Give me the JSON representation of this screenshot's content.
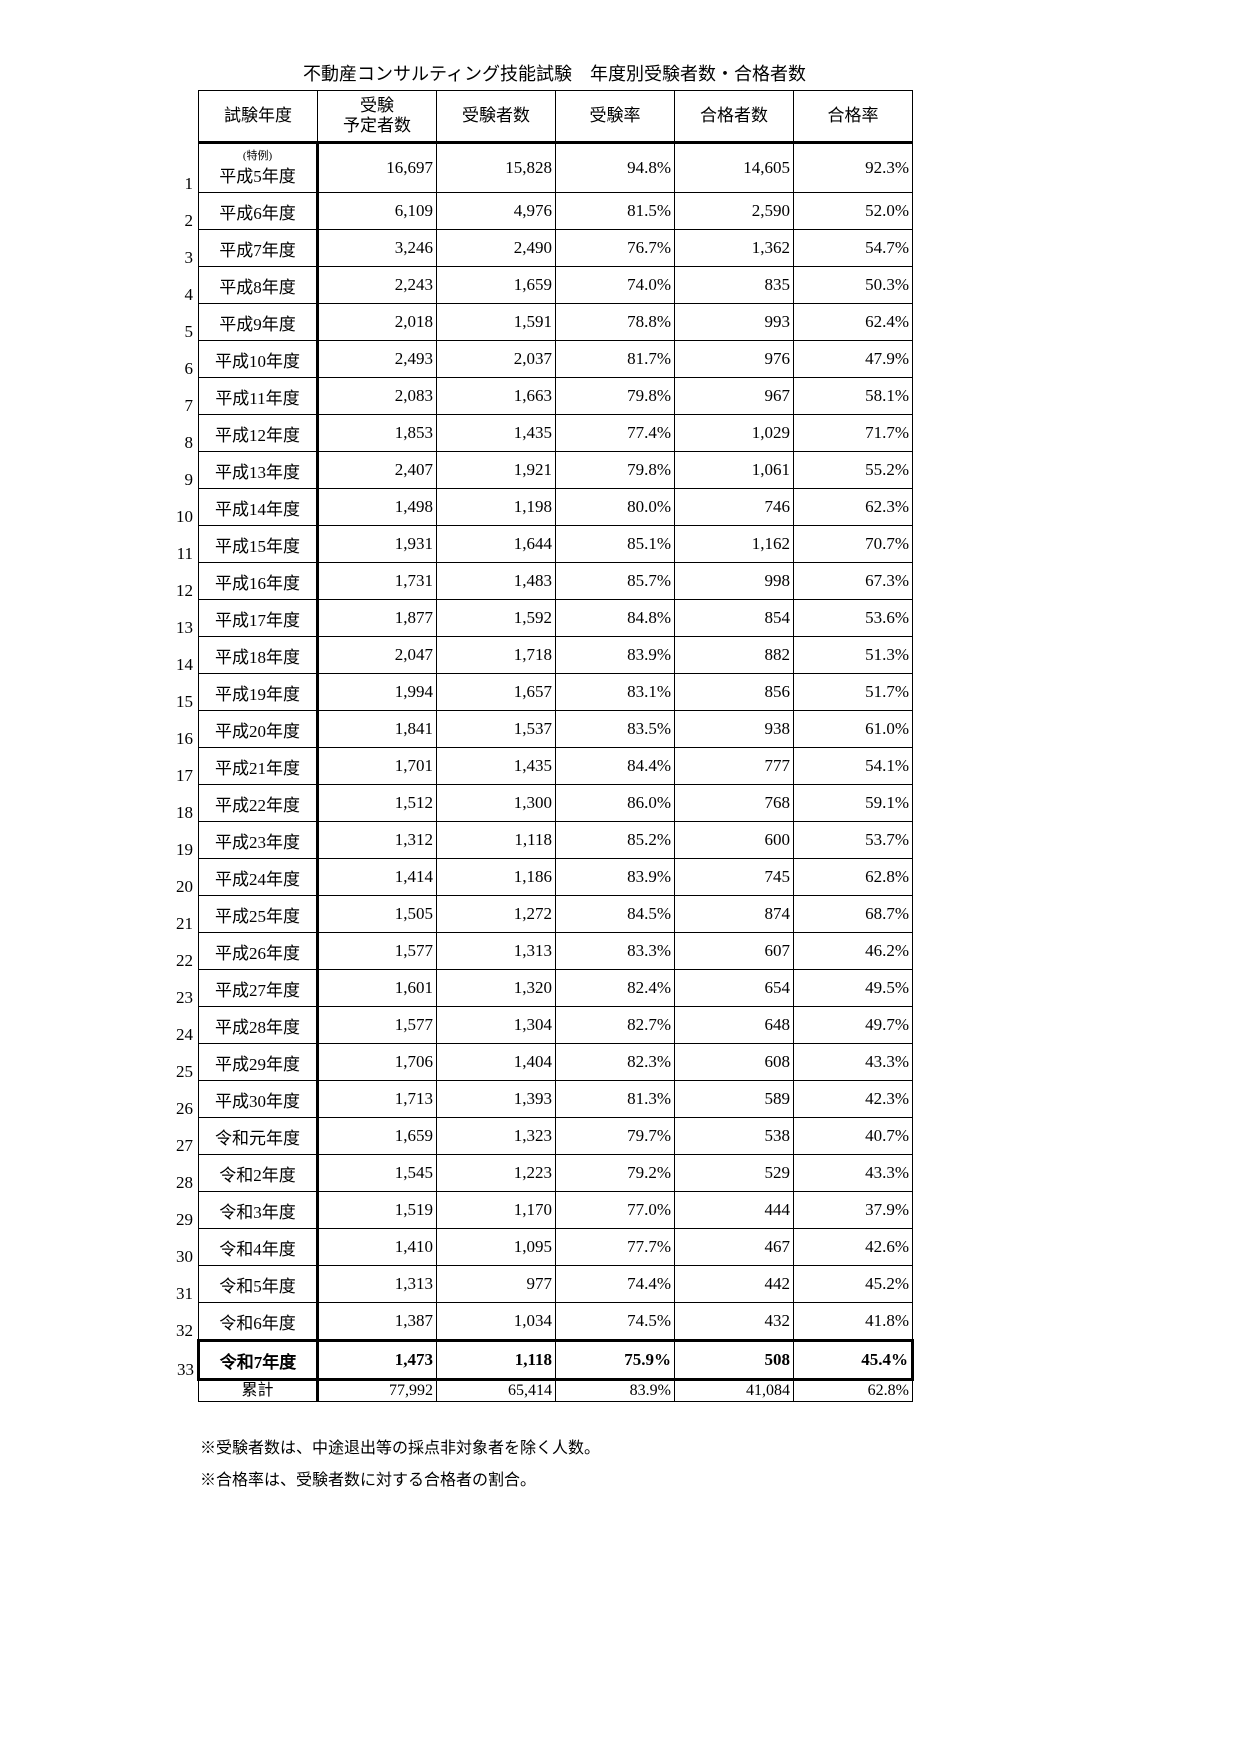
{
  "title": "不動産コンサルティング技能試験　年度別受験者数・合格者数",
  "headers": [
    "試験年度",
    "受験\n予定者数",
    "受験者数",
    "受験率",
    "合格者数",
    "合格率"
  ],
  "first_row_note": "(特例)",
  "rows": [
    {
      "no": "1",
      "year": "平成5年度",
      "planned": "16,697",
      "examinees": "15,828",
      "exam_rate": "94.8%",
      "passed": "14,605",
      "pass_rate": "92.3%"
    },
    {
      "no": "2",
      "year": "平成6年度",
      "planned": "6,109",
      "examinees": "4,976",
      "exam_rate": "81.5%",
      "passed": "2,590",
      "pass_rate": "52.0%"
    },
    {
      "no": "3",
      "year": "平成7年度",
      "planned": "3,246",
      "examinees": "2,490",
      "exam_rate": "76.7%",
      "passed": "1,362",
      "pass_rate": "54.7%"
    },
    {
      "no": "4",
      "year": "平成8年度",
      "planned": "2,243",
      "examinees": "1,659",
      "exam_rate": "74.0%",
      "passed": "835",
      "pass_rate": "50.3%"
    },
    {
      "no": "5",
      "year": "平成9年度",
      "planned": "2,018",
      "examinees": "1,591",
      "exam_rate": "78.8%",
      "passed": "993",
      "pass_rate": "62.4%"
    },
    {
      "no": "6",
      "year": "平成10年度",
      "planned": "2,493",
      "examinees": "2,037",
      "exam_rate": "81.7%",
      "passed": "976",
      "pass_rate": "47.9%"
    },
    {
      "no": "7",
      "year": "平成11年度",
      "planned": "2,083",
      "examinees": "1,663",
      "exam_rate": "79.8%",
      "passed": "967",
      "pass_rate": "58.1%"
    },
    {
      "no": "8",
      "year": "平成12年度",
      "planned": "1,853",
      "examinees": "1,435",
      "exam_rate": "77.4%",
      "passed": "1,029",
      "pass_rate": "71.7%"
    },
    {
      "no": "9",
      "year": "平成13年度",
      "planned": "2,407",
      "examinees": "1,921",
      "exam_rate": "79.8%",
      "passed": "1,061",
      "pass_rate": "55.2%"
    },
    {
      "no": "10",
      "year": "平成14年度",
      "planned": "1,498",
      "examinees": "1,198",
      "exam_rate": "80.0%",
      "passed": "746",
      "pass_rate": "62.3%"
    },
    {
      "no": "11",
      "year": "平成15年度",
      "planned": "1,931",
      "examinees": "1,644",
      "exam_rate": "85.1%",
      "passed": "1,162",
      "pass_rate": "70.7%"
    },
    {
      "no": "12",
      "year": "平成16年度",
      "planned": "1,731",
      "examinees": "1,483",
      "exam_rate": "85.7%",
      "passed": "998",
      "pass_rate": "67.3%"
    },
    {
      "no": "13",
      "year": "平成17年度",
      "planned": "1,877",
      "examinees": "1,592",
      "exam_rate": "84.8%",
      "passed": "854",
      "pass_rate": "53.6%"
    },
    {
      "no": "14",
      "year": "平成18年度",
      "planned": "2,047",
      "examinees": "1,718",
      "exam_rate": "83.9%",
      "passed": "882",
      "pass_rate": "51.3%"
    },
    {
      "no": "15",
      "year": "平成19年度",
      "planned": "1,994",
      "examinees": "1,657",
      "exam_rate": "83.1%",
      "passed": "856",
      "pass_rate": "51.7%"
    },
    {
      "no": "16",
      "year": "平成20年度",
      "planned": "1,841",
      "examinees": "1,537",
      "exam_rate": "83.5%",
      "passed": "938",
      "pass_rate": "61.0%"
    },
    {
      "no": "17",
      "year": "平成21年度",
      "planned": "1,701",
      "examinees": "1,435",
      "exam_rate": "84.4%",
      "passed": "777",
      "pass_rate": "54.1%"
    },
    {
      "no": "18",
      "year": "平成22年度",
      "planned": "1,512",
      "examinees": "1,300",
      "exam_rate": "86.0%",
      "passed": "768",
      "pass_rate": "59.1%"
    },
    {
      "no": "19",
      "year": "平成23年度",
      "planned": "1,312",
      "examinees": "1,118",
      "exam_rate": "85.2%",
      "passed": "600",
      "pass_rate": "53.7%"
    },
    {
      "no": "20",
      "year": "平成24年度",
      "planned": "1,414",
      "examinees": "1,186",
      "exam_rate": "83.9%",
      "passed": "745",
      "pass_rate": "62.8%"
    },
    {
      "no": "21",
      "year": "平成25年度",
      "planned": "1,505",
      "examinees": "1,272",
      "exam_rate": "84.5%",
      "passed": "874",
      "pass_rate": "68.7%"
    },
    {
      "no": "22",
      "year": "平成26年度",
      "planned": "1,577",
      "examinees": "1,313",
      "exam_rate": "83.3%",
      "passed": "607",
      "pass_rate": "46.2%"
    },
    {
      "no": "23",
      "year": "平成27年度",
      "planned": "1,601",
      "examinees": "1,320",
      "exam_rate": "82.4%",
      "passed": "654",
      "pass_rate": "49.5%"
    },
    {
      "no": "24",
      "year": "平成28年度",
      "planned": "1,577",
      "examinees": "1,304",
      "exam_rate": "82.7%",
      "passed": "648",
      "pass_rate": "49.7%"
    },
    {
      "no": "25",
      "year": "平成29年度",
      "planned": "1,706",
      "examinees": "1,404",
      "exam_rate": "82.3%",
      "passed": "608",
      "pass_rate": "43.3%"
    },
    {
      "no": "26",
      "year": "平成30年度",
      "planned": "1,713",
      "examinees": "1,393",
      "exam_rate": "81.3%",
      "passed": "589",
      "pass_rate": "42.3%"
    },
    {
      "no": "27",
      "year": "令和元年度",
      "planned": "1,659",
      "examinees": "1,323",
      "exam_rate": "79.7%",
      "passed": "538",
      "pass_rate": "40.7%"
    },
    {
      "no": "28",
      "year": "令和2年度",
      "planned": "1,545",
      "examinees": "1,223",
      "exam_rate": "79.2%",
      "passed": "529",
      "pass_rate": "43.3%"
    },
    {
      "no": "29",
      "year": "令和3年度",
      "planned": "1,519",
      "examinees": "1,170",
      "exam_rate": "77.0%",
      "passed": "444",
      "pass_rate": "37.9%"
    },
    {
      "no": "30",
      "year": "令和4年度",
      "planned": "1,410",
      "examinees": "1,095",
      "exam_rate": "77.7%",
      "passed": "467",
      "pass_rate": "42.6%"
    },
    {
      "no": "31",
      "year": "令和5年度",
      "planned": "1,313",
      "examinees": "977",
      "exam_rate": "74.4%",
      "passed": "442",
      "pass_rate": "45.2%"
    },
    {
      "no": "32",
      "year": "令和6年度",
      "planned": "1,387",
      "examinees": "1,034",
      "exam_rate": "74.5%",
      "passed": "432",
      "pass_rate": "41.8%"
    },
    {
      "no": "33",
      "year": "令和7年度",
      "planned": "1,473",
      "examinees": "1,118",
      "exam_rate": "75.9%",
      "passed": "508",
      "pass_rate": "45.4%"
    }
  ],
  "total": {
    "label": "累計",
    "planned": "77,992",
    "examinees": "65,414",
    "exam_rate": "83.9%",
    "passed": "41,084",
    "pass_rate": "62.8%"
  },
  "notes": [
    "※受験者数は、中途退出等の採点非対象者を除く人数。",
    "※合格率は、受験者数に対する合格者の割合。"
  ]
}
